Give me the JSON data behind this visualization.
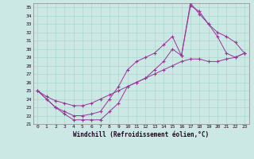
{
  "xlabel": "Windchill (Refroidissement éolien,°C)",
  "xlim": [
    -0.5,
    23.5
  ],
  "ylim": [
    21,
    35.5
  ],
  "yticks": [
    21,
    22,
    23,
    24,
    25,
    26,
    27,
    28,
    29,
    30,
    31,
    32,
    33,
    34,
    35
  ],
  "xticks": [
    0,
    1,
    2,
    3,
    4,
    5,
    6,
    7,
    8,
    9,
    10,
    11,
    12,
    13,
    14,
    15,
    16,
    17,
    18,
    19,
    20,
    21,
    22,
    23
  ],
  "bg_color": "#cce8e4",
  "line_color": "#993399",
  "grid_color": "#aad8cc",
  "line1_x": [
    0,
    1,
    2,
    3,
    4,
    5,
    6,
    7,
    8,
    9,
    10,
    11,
    12,
    13,
    14,
    15,
    16,
    17,
    18,
    19,
    20,
    21,
    22,
    23
  ],
  "line1_y": [
    25.0,
    24.3,
    23.8,
    23.5,
    23.2,
    23.2,
    23.5,
    24.0,
    24.5,
    25.0,
    25.5,
    26.0,
    26.5,
    27.0,
    27.5,
    28.0,
    28.5,
    28.8,
    28.8,
    28.5,
    28.5,
    28.8,
    29.0,
    29.5
  ],
  "line2_x": [
    0,
    1,
    2,
    3,
    4,
    5,
    6,
    7,
    8,
    9,
    10,
    11,
    12,
    13,
    14,
    15,
    16,
    17,
    18,
    19,
    20,
    21,
    22,
    23
  ],
  "line2_y": [
    25.0,
    24.0,
    23.0,
    22.2,
    21.5,
    21.5,
    21.5,
    21.5,
    22.5,
    23.5,
    25.5,
    26.0,
    26.5,
    27.5,
    28.5,
    30.0,
    29.2,
    35.2,
    34.5,
    33.0,
    31.5,
    29.5,
    29.0,
    29.5
  ],
  "line3_x": [
    0,
    1,
    2,
    3,
    4,
    5,
    6,
    7,
    8,
    9,
    10,
    11,
    12,
    13,
    14,
    15,
    16,
    17,
    18,
    19,
    20,
    21,
    22,
    23
  ],
  "line3_y": [
    25.0,
    24.0,
    23.0,
    22.5,
    22.0,
    22.0,
    22.2,
    22.5,
    24.0,
    25.5,
    27.5,
    28.5,
    29.0,
    29.5,
    30.5,
    31.5,
    29.2,
    35.5,
    34.2,
    33.0,
    32.0,
    31.5,
    30.8,
    29.5
  ]
}
